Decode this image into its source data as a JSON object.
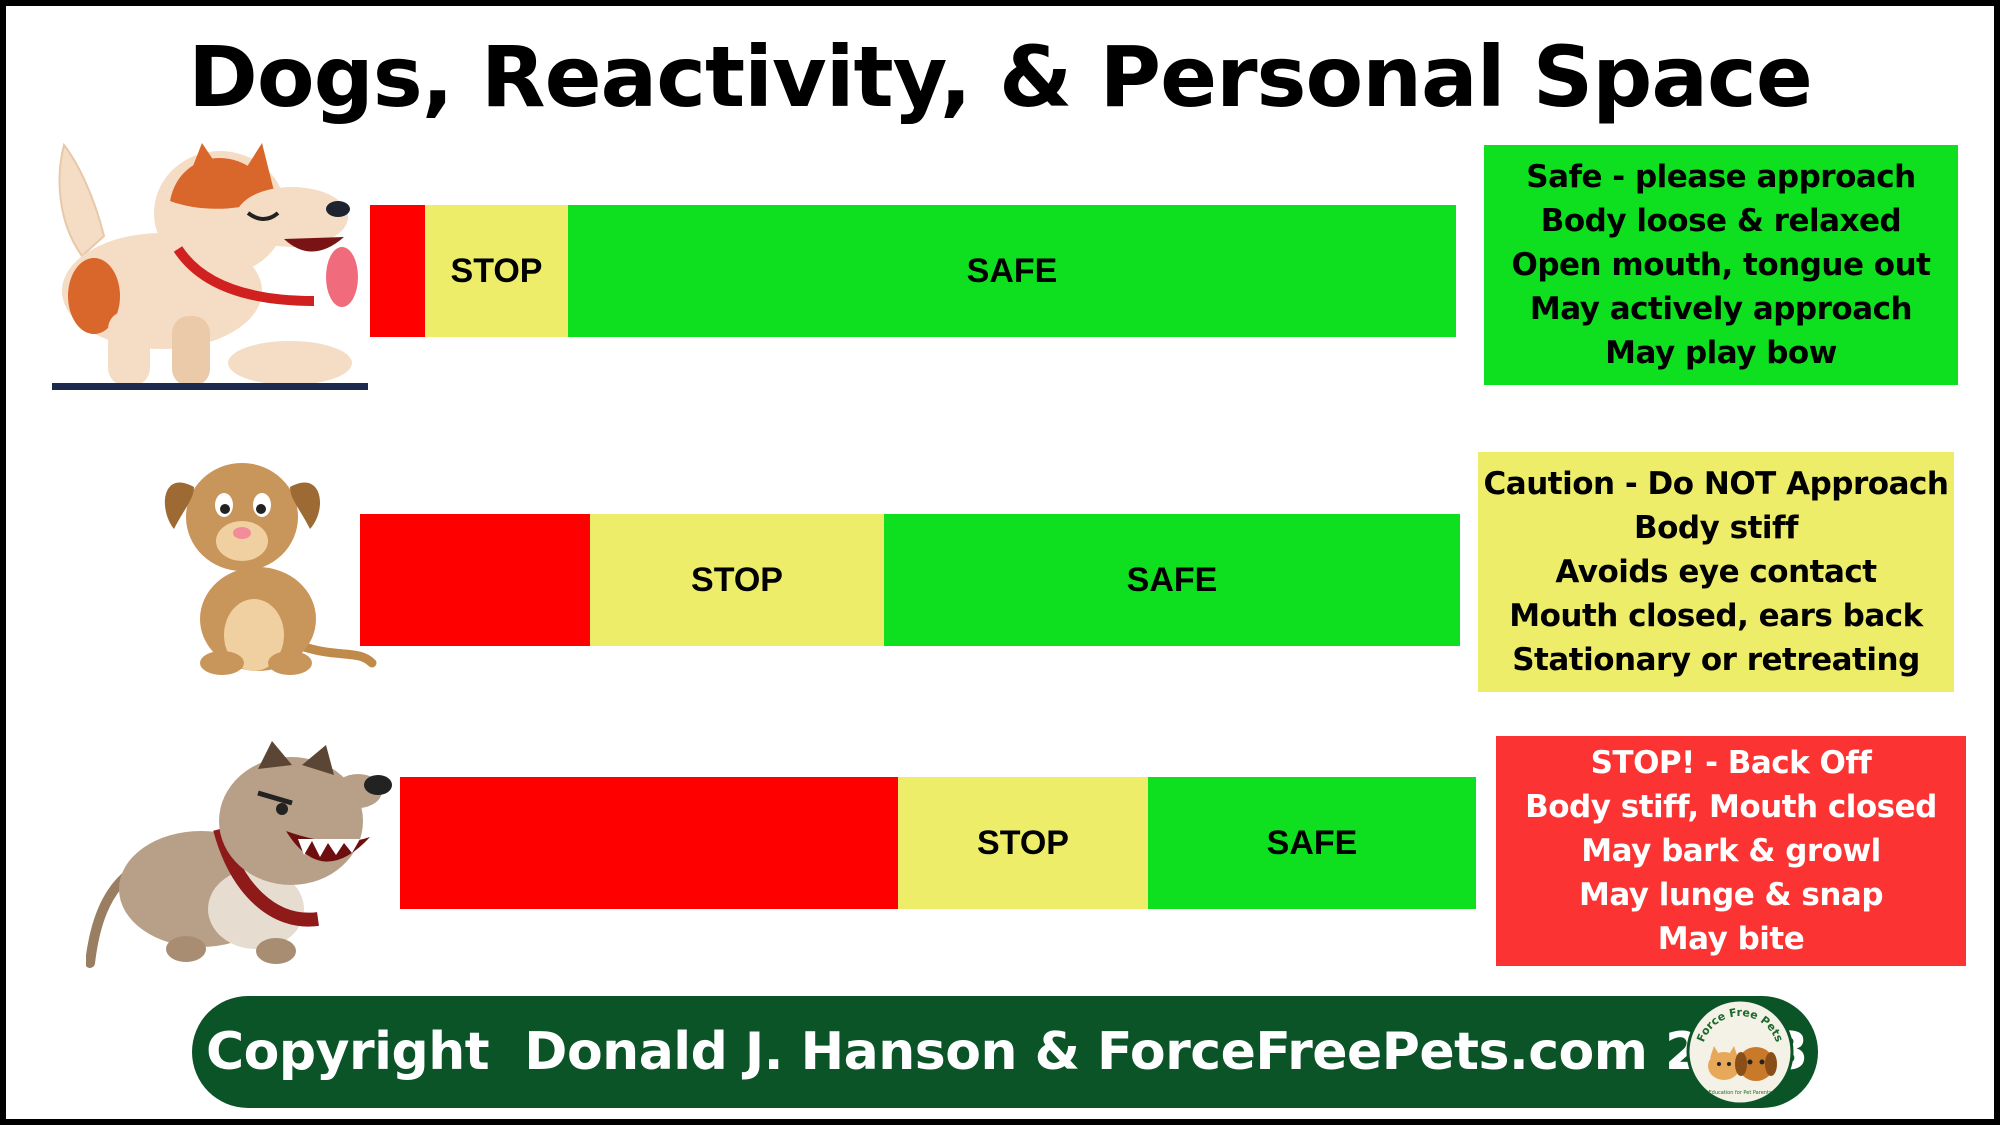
{
  "title": "Dogs, Reactivity, & Personal Space",
  "colors": {
    "red": "#ff0000",
    "yellow": "#eded6a",
    "green": "#0ee01f",
    "alert_box": "#fb3333",
    "footer": "#0a5427"
  },
  "rows": [
    {
      "dog_icon": "happy-dog-icon",
      "zones": {
        "stop": "STOP",
        "safe": "SAFE"
      },
      "zone_fractions": {
        "red": 0.05,
        "yellow": 0.13,
        "green": 0.82
      },
      "lines": [
        "Safe - please approach",
        "Body loose & relaxed",
        "Open mouth, tongue out",
        "May actively approach",
        "May play bow"
      ]
    },
    {
      "dog_icon": "nervous-dog-icon",
      "zones": {
        "stop": "STOP",
        "safe": "SAFE"
      },
      "zone_fractions": {
        "red": 0.21,
        "yellow": 0.27,
        "green": 0.52
      },
      "lines": [
        "Caution - Do NOT Approach",
        "Body stiff",
        "Avoids eye contact",
        "Mouth closed, ears back",
        "Stationary or retreating"
      ]
    },
    {
      "dog_icon": "aggressive-dog-icon",
      "zones": {
        "stop": "STOP",
        "safe": "SAFE"
      },
      "zone_fractions": {
        "red": 0.46,
        "yellow": 0.23,
        "green": 0.31
      },
      "lines": [
        "STOP! - Back Off",
        "Body stiff, Mouth closed",
        "May bark & growl",
        "May lunge & snap",
        "May bite"
      ]
    }
  ],
  "footer": {
    "text": "Copyright  Donald J. Hanson & ForceFreePets.com 2023",
    "logo_text": "Force Free Pets",
    "logo_subtext": "Education for Pet Parents"
  }
}
